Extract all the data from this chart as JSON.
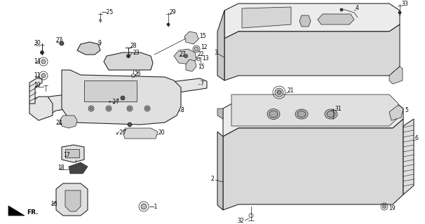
{
  "background_color": "#ffffff",
  "line_color": "#1a1a1a",
  "text_color": "#000000",
  "figsize": [
    6.06,
    3.2
  ],
  "dpi": 100,
  "fs": 5.5,
  "lw_thin": 0.5,
  "lw_med": 0.75,
  "lw_thick": 1.0
}
